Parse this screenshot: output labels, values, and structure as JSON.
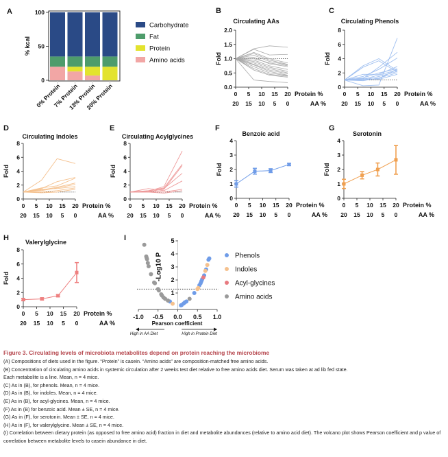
{
  "figure": {
    "panel_letters": [
      "A",
      "B",
      "C",
      "D",
      "E",
      "F",
      "G",
      "H",
      "I"
    ],
    "caption": {
      "title": "Figure 3. Circulating levels of microbiota metabolites depend on protein reaching the microbiome",
      "lines": [
        "(A) Compositions of diets used in the figure. “Protein” is casein. “Amino acids” are composition-matched free amino acids.",
        "(B) Concentration of circulating amino acids in systemic circulation after 2 weeks test diet relative to free amino acids diet. Serum was taken at ad lib fed state.",
        "Each metabolite is a line. Mean, n = 4 mice.",
        "(C) As in (B), for phenols. Mean, n = 4 mice.",
        "(D) As in (B), for indoles. Mean, n = 4 mice.",
        "(E) As in (B), for acyl-glycines. Mean, n = 4 mice.",
        "(F) As in (B) for benzoic acid. Mean ± SE, n = 4 mice.",
        "(G) As in (F), for serotonin. Mean ± SE, n = 4 mice.",
        "(H) As in (F), for valerylglycine. Mean ± SE, n = 4 mice.",
        "(I) Correlation between dietary protein (as opposed to free amino acid) fraction in diet and metabolite abundances (relative to amino acid diet). The volcano plot shows Pearson coefficient and p value of correlation between metabolite levels to casein abundance in diet."
      ]
    },
    "colors": {
      "carbohydrate": "#2a4a86",
      "fat": "#4e9c6b",
      "protein": "#e3e32e",
      "amino_acids": "#f2a6a5",
      "aas_lines": "#a8a8a8",
      "phenols": "#9fbff0",
      "indoles": "#f5c18e",
      "acylglycines": "#ee9a9a",
      "benzoic": "#6f9ce8",
      "serotonin": "#f0a050",
      "valeryl": "#ee8080",
      "volcano_phenols": "#6f9ce8",
      "volcano_indoles": "#f5c18e",
      "volcano_acyl": "#e87a80",
      "volcano_aa": "#9a9a9a",
      "caption_title": "#b5454c"
    },
    "x_axis_labels": {
      "protein": "Protein %",
      "aa": "AA %",
      "protein_ticks": [
        "0",
        "5",
        "10",
        "15",
        "20"
      ],
      "aa_ticks": [
        "20",
        "15",
        "10",
        "5",
        "0"
      ]
    }
  },
  "chart_data": [
    {
      "id": "A",
      "type": "bar",
      "stacked": true,
      "title": "",
      "ylabel": "% kcal",
      "ylim": [
        0,
        100
      ],
      "yticks": [
        "0",
        "50",
        "100"
      ],
      "categories": [
        "0% Protein",
        "7% Protein",
        "13% Protein",
        "20% Protein"
      ],
      "series": [
        {
          "name": "Amino acids",
          "values": [
            20,
            13,
            7,
            0
          ]
        },
        {
          "name": "Protein",
          "values": [
            0,
            7,
            13,
            20
          ]
        },
        {
          "name": "Fat",
          "values": [
            15,
            15,
            15,
            15
          ]
        },
        {
          "name": "Carbohydrate",
          "values": [
            65,
            65,
            65,
            65
          ]
        }
      ],
      "legend": [
        "Carbohydrate",
        "Fat",
        "Protein",
        "Amino acids"
      ],
      "legend_position": "right"
    },
    {
      "id": "B",
      "type": "line",
      "title": "Circulating AAs",
      "ylabel": "Fold",
      "ylim": [
        0,
        2.0
      ],
      "yticks": [
        "0.0",
        "0.5",
        "1.0",
        "1.5",
        "2.0"
      ],
      "x": [
        0,
        7,
        13,
        20
      ],
      "reference_line": 1.0,
      "series": [
        {
          "values": [
            1,
            1.35,
            1.45,
            1.4
          ]
        },
        {
          "values": [
            1,
            1.33,
            1.13,
            1.15
          ]
        },
        {
          "values": [
            1,
            1.22,
            1.0,
            0.85
          ]
        },
        {
          "values": [
            1,
            1.18,
            0.95,
            0.8
          ]
        },
        {
          "values": [
            1,
            1.12,
            0.9,
            0.78
          ]
        },
        {
          "values": [
            1,
            1.05,
            0.82,
            0.72
          ]
        },
        {
          "values": [
            1,
            1.0,
            0.85,
            0.75
          ]
        },
        {
          "values": [
            1,
            0.95,
            0.75,
            0.62
          ]
        },
        {
          "values": [
            1,
            0.9,
            0.7,
            0.55
          ]
        },
        {
          "values": [
            1,
            0.85,
            0.65,
            0.5
          ]
        },
        {
          "values": [
            1,
            0.8,
            0.6,
            0.47
          ]
        },
        {
          "values": [
            1,
            0.78,
            0.55,
            0.42
          ]
        },
        {
          "values": [
            1,
            0.72,
            0.5,
            0.4
          ]
        },
        {
          "values": [
            1,
            0.65,
            0.45,
            0.38
          ]
        },
        {
          "values": [
            1,
            0.6,
            0.42,
            0.35
          ]
        },
        {
          "values": [
            1,
            0.25,
            0.2,
            0.16
          ]
        }
      ]
    },
    {
      "id": "C",
      "type": "line",
      "title": "Circulating Phenols",
      "ylabel": "Fold",
      "ylim": [
        0,
        8
      ],
      "yticks": [
        "0",
        "2",
        "4",
        "6",
        "8"
      ],
      "x": [
        0,
        7,
        13,
        20
      ],
      "reference_line": 1.0,
      "series": [
        {
          "values": [
            1,
            3.0,
            4.0,
            2.3
          ]
        },
        {
          "values": [
            1,
            2.8,
            3.7,
            2.1
          ]
        },
        {
          "values": [
            1,
            0.2,
            0.3,
            6.9
          ]
        },
        {
          "values": [
            1,
            1.2,
            2.8,
            4.9
          ]
        },
        {
          "values": [
            1,
            1.5,
            2.5,
            4.1
          ]
        },
        {
          "values": [
            1,
            1.8,
            1.8,
            2.9
          ]
        },
        {
          "values": [
            1,
            1.3,
            2.0,
            2.6
          ]
        },
        {
          "values": [
            1,
            1.1,
            1.7,
            2.4
          ]
        },
        {
          "values": [
            1,
            1.0,
            1.5,
            2.2
          ]
        },
        {
          "values": [
            1,
            0.9,
            1.3,
            2.0
          ]
        },
        {
          "values": [
            1,
            1.2,
            1.1,
            1.8
          ]
        },
        {
          "values": [
            1,
            1.0,
            1.2,
            2.5
          ]
        }
      ]
    },
    {
      "id": "D",
      "type": "line",
      "title": "Circulating Indoles",
      "ylabel": "Fold",
      "ylim": [
        0,
        8
      ],
      "yticks": [
        "0",
        "2",
        "4",
        "6",
        "8"
      ],
      "x": [
        0,
        7,
        13,
        20
      ],
      "reference_line": 1.0,
      "series": [
        {
          "values": [
            1,
            2.7,
            5.8,
            5.1
          ]
        },
        {
          "values": [
            1,
            1.5,
            2.5,
            3.1
          ]
        },
        {
          "values": [
            1,
            1.6,
            1.9,
            3.0
          ]
        },
        {
          "values": [
            1,
            1.3,
            1.7,
            2.3
          ]
        },
        {
          "values": [
            1,
            1.2,
            1.6,
            2.1
          ]
        },
        {
          "values": [
            1,
            1.4,
            1.5,
            1.8
          ]
        },
        {
          "values": [
            1,
            1.0,
            1.2,
            1.6
          ]
        },
        {
          "values": [
            1,
            0.9,
            1.0,
            1.4
          ]
        }
      ]
    },
    {
      "id": "E",
      "type": "line",
      "title": "Circulating Acylglycines",
      "ylabel": "Fold",
      "ylim": [
        0,
        8
      ],
      "yticks": [
        "0",
        "2",
        "4",
        "6",
        "8"
      ],
      "x": [
        0,
        7,
        13,
        20
      ],
      "reference_line": 1.0,
      "series": [
        {
          "values": [
            1,
            1.1,
            1.8,
            6.9
          ]
        },
        {
          "values": [
            1,
            1.2,
            1.6,
            5.0
          ]
        },
        {
          "values": [
            1,
            1.1,
            1.4,
            4.8
          ]
        },
        {
          "values": [
            1,
            1.0,
            1.5,
            3.7
          ]
        },
        {
          "values": [
            1,
            1.5,
            1.2,
            2.6
          ]
        },
        {
          "values": [
            1,
            1.1,
            1.0,
            1.4
          ]
        },
        {
          "values": [
            1,
            1.0,
            0.85,
            1.2
          ]
        }
      ]
    },
    {
      "id": "F",
      "type": "line",
      "title": "Benzoic acid",
      "ylabel": "Fold",
      "ylim": [
        0,
        4
      ],
      "yticks": [
        "0",
        "1",
        "2",
        "3",
        "4"
      ],
      "x": [
        0,
        7,
        13,
        20
      ],
      "series": [
        {
          "name": "Benzoic acid",
          "values": [
            1.0,
            1.88,
            1.92,
            2.35
          ],
          "se": [
            0.22,
            0.2,
            0.13,
            0.08
          ]
        }
      ]
    },
    {
      "id": "G",
      "type": "line",
      "title": "Serotonin",
      "ylabel": "Fold",
      "ylim": [
        0,
        4
      ],
      "yticks": [
        "0",
        "1",
        "2",
        "3",
        "4"
      ],
      "x": [
        0,
        7,
        13,
        20
      ],
      "series": [
        {
          "name": "Serotonin",
          "values": [
            1.0,
            1.6,
            2.0,
            2.67
          ],
          "se": [
            0.32,
            0.25,
            0.45,
            1.0
          ]
        }
      ]
    },
    {
      "id": "H",
      "type": "line",
      "title": "Valerylglycine",
      "ylabel": "Fold",
      "ylim": [
        0,
        8
      ],
      "yticks": [
        "0",
        "2",
        "4",
        "6",
        "8"
      ],
      "x": [
        0,
        7,
        13,
        20
      ],
      "series": [
        {
          "name": "Valerylglycine",
          "values": [
            1.0,
            1.1,
            1.55,
            4.8
          ],
          "se": [
            0.15,
            0.15,
            0.15,
            1.4
          ]
        }
      ]
    },
    {
      "id": "I",
      "type": "scatter",
      "title": "",
      "xlabel": "Pearson coefficient",
      "ylabel": "-Log10 P",
      "xlim": [
        -1.0,
        1.0
      ],
      "ylim": [
        0,
        5
      ],
      "xticks": [
        "-1.0",
        "-0.5",
        "0.0",
        "0.5",
        "1.0"
      ],
      "yticks": [
        "1",
        "2",
        "3",
        "4",
        "5"
      ],
      "threshold": 1.3,
      "annotations": [
        "High in AA Diet",
        "High in Protein Diet"
      ],
      "legend_position": "right",
      "series": [
        {
          "name": "Phenols",
          "points": [
            [
              0.08,
              0.05
            ],
            [
              0.1,
              0.08
            ],
            [
              0.15,
              0.2
            ],
            [
              0.18,
              0.28
            ],
            [
              0.22,
              0.35
            ],
            [
              0.42,
              1.0
            ],
            [
              0.55,
              1.6
            ],
            [
              0.58,
              1.75
            ],
            [
              0.6,
              1.9
            ],
            [
              0.62,
              2.05
            ],
            [
              0.67,
              2.35
            ],
            [
              0.72,
              2.8
            ],
            [
              0.78,
              3.55
            ],
            [
              0.8,
              3.65
            ],
            [
              -0.2,
              0.35
            ]
          ]
        },
        {
          "name": "Indoles",
          "points": [
            [
              0.5,
              1.3
            ],
            [
              0.52,
              1.38
            ],
            [
              0.7,
              2.7
            ],
            [
              0.75,
              3.15
            ],
            [
              -0.13,
              0.18
            ]
          ]
        },
        {
          "name": "Acyl-glycines",
          "points": [
            [
              0.65,
              2.2
            ]
          ]
        },
        {
          "name": "Amino acids",
          "points": [
            [
              -0.85,
              4.7
            ],
            [
              -0.8,
              3.8
            ],
            [
              -0.79,
              3.7
            ],
            [
              -0.78,
              3.6
            ],
            [
              -0.76,
              3.3
            ],
            [
              -0.74,
              3.05
            ],
            [
              -0.68,
              2.45
            ],
            [
              -0.6,
              1.8
            ],
            [
              -0.58,
              1.75
            ],
            [
              -0.5,
              1.3
            ],
            [
              -0.48,
              1.2
            ],
            [
              -0.42,
              0.9
            ],
            [
              -0.4,
              0.8
            ],
            [
              -0.36,
              0.65
            ],
            [
              -0.32,
              0.55
            ],
            [
              -0.25,
              0.42
            ],
            [
              0.3,
              0.55
            ]
          ]
        }
      ]
    }
  ]
}
